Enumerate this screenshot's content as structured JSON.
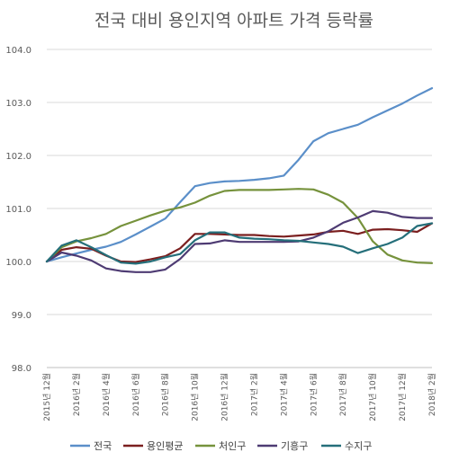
{
  "chart_data": {
    "type": "line",
    "title": "전국 대비 용인지역 아파트 가격 등락률",
    "xlabel": "",
    "ylabel": "",
    "ylim": [
      98.0,
      104.0
    ],
    "yticks": [
      "98.0",
      "99.0",
      "100.0",
      "101.0",
      "102.0",
      "103.0",
      "104.0"
    ],
    "grid": true,
    "legend_position": "bottom",
    "x_labels": [
      "2015년 12월",
      "2016년 2월",
      "2016년 4월",
      "2016년 6월",
      "2016년 8월",
      "2016년 10월",
      "2016년 12월",
      "2017년 2월",
      "2017년 4월",
      "2017년 6월",
      "2017년 8월",
      "2017년 10월",
      "2017년 12월",
      "2018년 2월"
    ],
    "categories": [
      "2015-12",
      "2016-01",
      "2016-02",
      "2016-03",
      "2016-04",
      "2016-05",
      "2016-06",
      "2016-07",
      "2016-08",
      "2016-09",
      "2016-10",
      "2016-11",
      "2016-12",
      "2017-01",
      "2017-02",
      "2017-03",
      "2017-04",
      "2017-05",
      "2017-06",
      "2017-07",
      "2017-08",
      "2017-09",
      "2017-10",
      "2017-11",
      "2017-12",
      "2018-01",
      "2018-02"
    ],
    "series": [
      {
        "name": "전국",
        "color": "#5b8fc9",
        "values": [
          100.0,
          100.08,
          100.15,
          100.22,
          100.28,
          100.37,
          100.51,
          100.66,
          100.81,
          101.12,
          101.42,
          101.48,
          101.51,
          101.52,
          101.54,
          101.57,
          101.62,
          101.92,
          102.27,
          102.42,
          102.5,
          102.58,
          102.72,
          102.85,
          102.98,
          103.13,
          103.27
        ]
      },
      {
        "name": "용인평균",
        "color": "#7b1f1f",
        "values": [
          100.0,
          100.22,
          100.27,
          100.24,
          100.11,
          100.0,
          99.99,
          100.04,
          100.1,
          100.25,
          100.52,
          100.52,
          100.51,
          100.5,
          100.5,
          100.48,
          100.47,
          100.49,
          100.51,
          100.56,
          100.58,
          100.52,
          100.6,
          100.61,
          100.59,
          100.56,
          100.72
        ]
      },
      {
        "name": "처인구",
        "color": "#76923c",
        "values": [
          100.0,
          100.27,
          100.38,
          100.44,
          100.52,
          100.67,
          100.77,
          100.87,
          100.96,
          101.02,
          101.11,
          101.24,
          101.33,
          101.35,
          101.35,
          101.35,
          101.36,
          101.37,
          101.36,
          101.26,
          101.11,
          100.82,
          100.38,
          100.13,
          100.02,
          99.98,
          99.97
        ]
      },
      {
        "name": "기흥구",
        "color": "#4e3b73",
        "values": [
          100.0,
          100.17,
          100.11,
          100.02,
          99.87,
          99.82,
          99.8,
          99.8,
          99.85,
          100.05,
          100.33,
          100.34,
          100.4,
          100.37,
          100.37,
          100.37,
          100.37,
          100.38,
          100.45,
          100.57,
          100.73,
          100.83,
          100.95,
          100.92,
          100.84,
          100.82,
          100.82
        ]
      },
      {
        "name": "수지구",
        "color": "#256f7a",
        "values": [
          100.0,
          100.3,
          100.4,
          100.27,
          100.12,
          99.98,
          99.96,
          100.0,
          100.08,
          100.14,
          100.4,
          100.55,
          100.55,
          100.45,
          100.43,
          100.42,
          100.4,
          100.39,
          100.36,
          100.33,
          100.28,
          100.16,
          100.25,
          100.33,
          100.45,
          100.67,
          100.72
        ]
      }
    ]
  }
}
